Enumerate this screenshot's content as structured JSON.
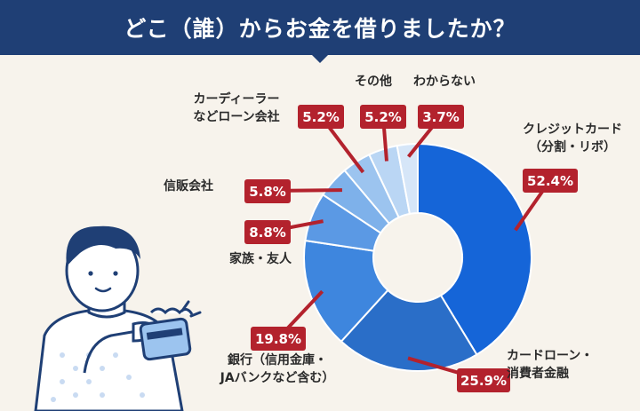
{
  "title": "どこ（誰）からお金を借りましたか？",
  "chart_data": {
    "type": "pie",
    "title": "どこ（誰）からお金を借りましたか？",
    "slices": [
      {
        "label": [
          "クレジットカード",
          "（分割・リボ）"
        ],
        "value": 52.4,
        "value_label": "52.4%",
        "color": "#1565d8"
      },
      {
        "label": [
          "カードローン・",
          "消費者金融"
        ],
        "value": 25.9,
        "value_label": "25.9%",
        "color": "#2a6ec8"
      },
      {
        "label": [
          "銀行（信用金庫・",
          "JAバンクなど含む）"
        ],
        "value": 19.8,
        "value_label": "19.8%",
        "color": "#3e86de"
      },
      {
        "label": [
          "家族・友人"
        ],
        "value": 8.8,
        "value_label": "8.8%",
        "color": "#5b99e4"
      },
      {
        "label": [
          "信販会社"
        ],
        "value": 5.8,
        "value_label": "5.8%",
        "color": "#7eb1ea"
      },
      {
        "label": [
          "カーディーラー",
          "などローン会社"
        ],
        "value": 5.2,
        "value_label": "5.2%",
        "color": "#9cc4ef"
      },
      {
        "label": [
          "その他"
        ],
        "value": 5.2,
        "value_label": "5.2%",
        "color": "#bad6f4"
      },
      {
        "label": [
          "わからない"
        ],
        "value": 3.7,
        "value_label": "3.7%",
        "color": "#d6e6f8"
      }
    ],
    "legend": "none"
  },
  "colors": {
    "header_bg": "#1f3f75",
    "background": "#f7f3ec",
    "value_box": "#b3222d"
  },
  "illustration": "person-holding-card"
}
